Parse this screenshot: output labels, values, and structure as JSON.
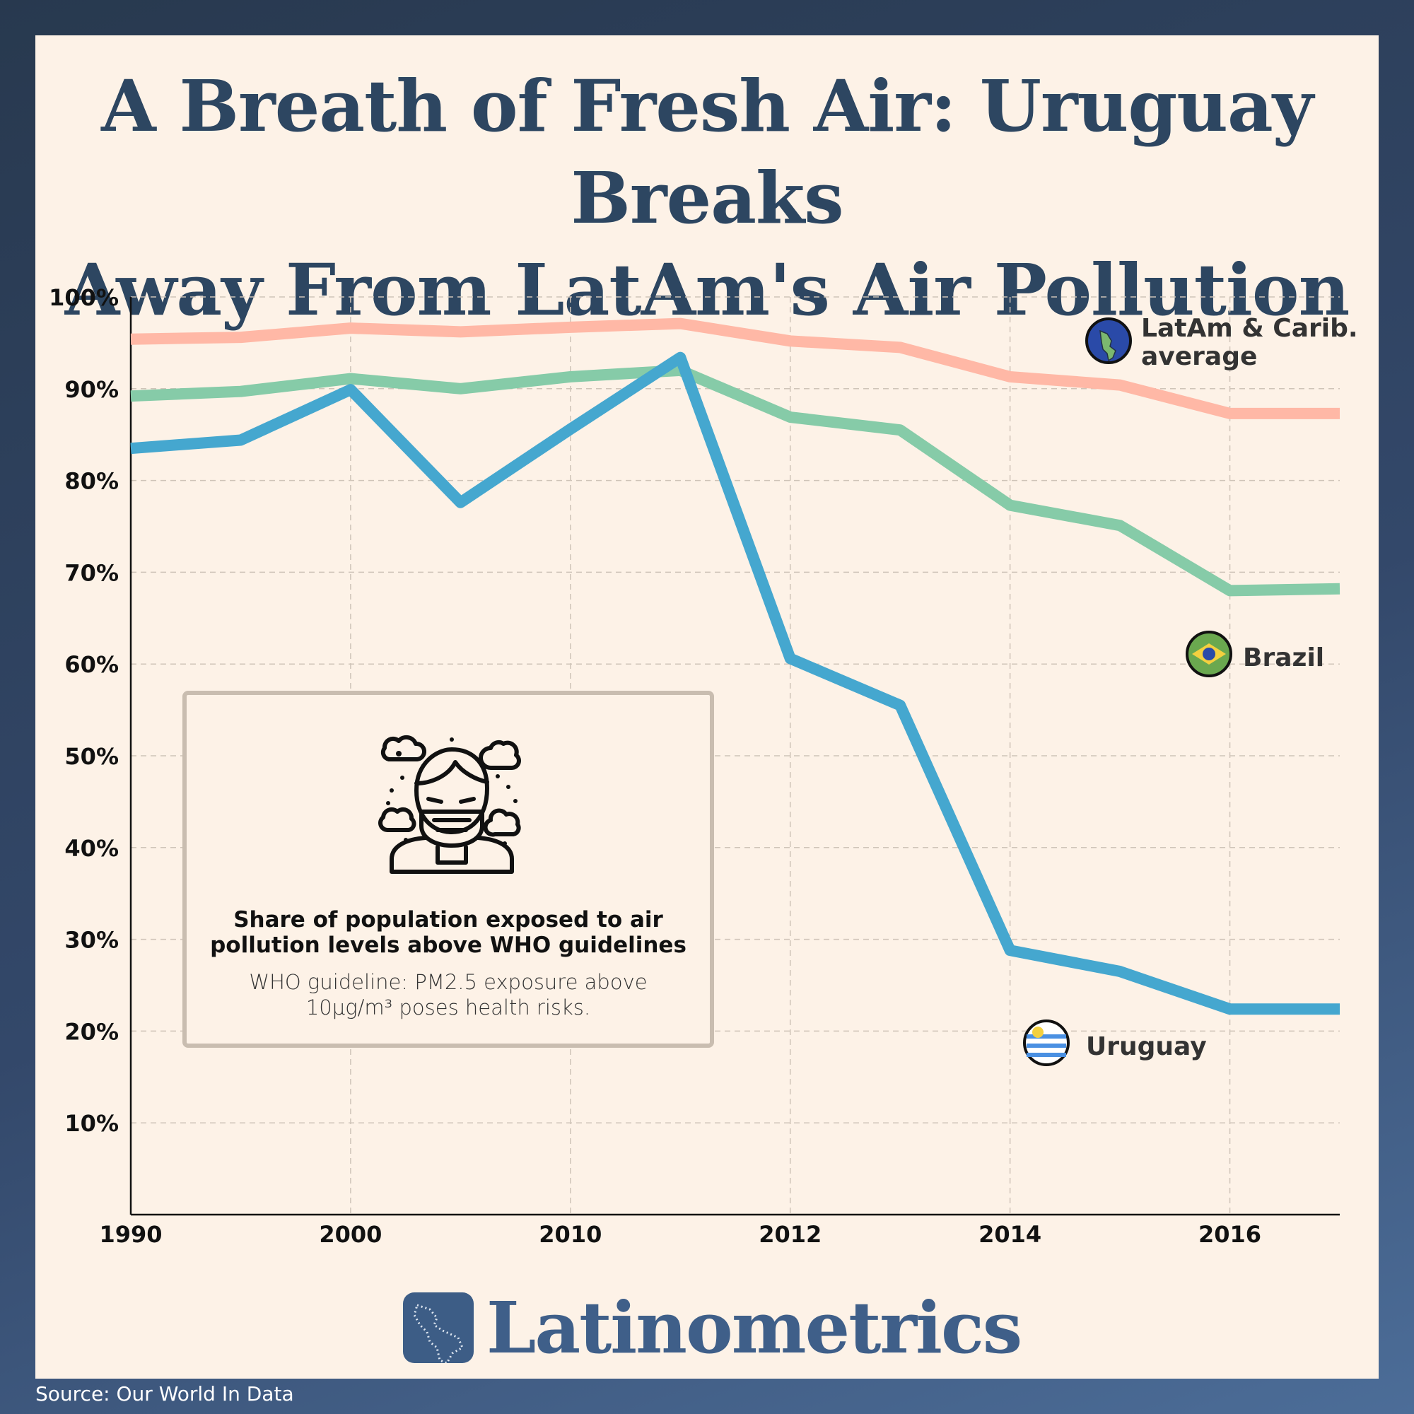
{
  "page": {
    "title_line1": "A Breath of Fresh Air: Uruguay Breaks",
    "title_line2": "Away From LatAm's Air Pollution",
    "source": "Source: Our World In Data",
    "brand": "Latinometrics"
  },
  "infobox": {
    "heading_line1": "Share of population exposed to air",
    "heading_line2": "pollution levels above WHO guidelines",
    "note_line1": "WHO guideline: PM2.5 exposure above",
    "note_line2": "10µg/m³ poses health risks.",
    "icon": "masked-person-pollution-icon"
  },
  "chart_data": {
    "type": "line",
    "title": "A Breath of Fresh Air: Uruguay Breaks Away From LatAm's Air Pollution",
    "xlabel": "",
    "ylabel": "",
    "x": [
      "1990",
      "1995",
      "2000",
      "2005",
      "2010",
      "2011",
      "2012",
      "2013",
      "2014",
      "2015",
      "2016",
      "2017"
    ],
    "x_tick_labels": [
      "1990",
      "2000",
      "2010",
      "2012",
      "2014",
      "2016"
    ],
    "y_tick_labels": [
      "10%",
      "20%",
      "30%",
      "40%",
      "50%",
      "60%",
      "70%",
      "80%",
      "90%",
      "100%"
    ],
    "ylim": [
      0,
      100
    ],
    "grid": true,
    "series": [
      {
        "name": "LatAm & Carib. average",
        "name_line1": "LatAm & Carib.",
        "name_line2": "average",
        "color": "#ffb8a6",
        "icon": "globe-americas-icon",
        "values": [
          95.4,
          95.6,
          96.6,
          96.2,
          96.7,
          97.1,
          95.2,
          94.5,
          91.3,
          90.4,
          87.3,
          87.3
        ]
      },
      {
        "name": "Brazil",
        "color": "#86cba8",
        "icon": "brazil-flag-icon",
        "values": [
          89.2,
          89.7,
          91.1,
          90.0,
          91.3,
          92.0,
          86.9,
          85.5,
          77.3,
          75.1,
          68.0,
          68.2
        ]
      },
      {
        "name": "Uruguay",
        "color": "#45a7cf",
        "icon": "uruguay-flag-icon",
        "values": [
          83.5,
          84.4,
          89.9,
          77.6,
          85.6,
          93.4,
          60.6,
          55.5,
          28.8,
          26.5,
          22.4,
          22.4
        ]
      }
    ]
  }
}
